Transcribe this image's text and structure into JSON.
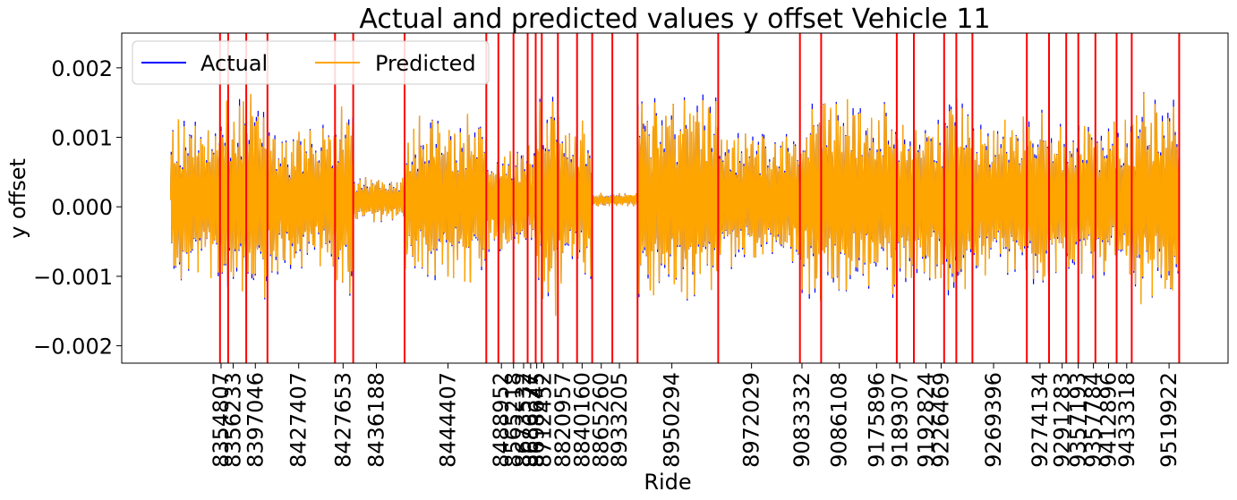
{
  "chart_data": {
    "type": "line",
    "title": "Actual and predicted values y offset Vehicle 11",
    "xlabel": "Ride",
    "ylabel": "y offset",
    "ylim": [
      -0.00225,
      0.0025
    ],
    "yticks": [
      {
        "value": -0.002,
        "label": "−0.002"
      },
      {
        "value": -0.001,
        "label": "−0.001"
      },
      {
        "value": 0.0,
        "label": "0.000"
      },
      {
        "value": 0.001,
        "label": "0.001"
      },
      {
        "value": 0.002,
        "label": "0.002"
      }
    ],
    "legend": {
      "location": "upper-left",
      "columns": 2
    },
    "series": [
      {
        "name": "Actual",
        "color": "#0000ff"
      },
      {
        "name": "Predicted",
        "color": "#ffa500"
      }
    ],
    "ride_boundary_color": "#ff0000",
    "ride_boundaries": [
      0.049,
      0.057,
      0.075,
      0.096,
      0.163,
      0.181,
      0.232,
      0.313,
      0.325,
      0.34,
      0.354,
      0.362,
      0.368,
      0.384,
      0.403,
      0.418,
      0.438,
      0.463,
      0.543,
      0.624,
      0.645,
      0.72,
      0.737,
      0.767,
      0.779,
      0.795,
      0.849,
      0.871,
      0.888,
      0.9,
      0.917,
      0.938,
      0.953,
      1.0
    ],
    "x_tick_labels": [
      {
        "pos": 0.05,
        "label": "8354807"
      },
      {
        "pos": 0.062,
        "label": "8356233"
      },
      {
        "pos": 0.084,
        "label": "8397046"
      },
      {
        "pos": 0.127,
        "label": "8427407"
      },
      {
        "pos": 0.171,
        "label": "8427653"
      },
      {
        "pos": 0.204,
        "label": "8436188"
      },
      {
        "pos": 0.275,
        "label": "8444407"
      },
      {
        "pos": 0.328,
        "label": "8488952"
      },
      {
        "pos": 0.34,
        "label": "8565218"
      },
      {
        "pos": 0.35,
        "label": "8673532"
      },
      {
        "pos": 0.357,
        "label": "8686377"
      },
      {
        "pos": 0.363,
        "label": "8698645"
      },
      {
        "pos": 0.37,
        "label": "8712452"
      },
      {
        "pos": 0.389,
        "label": "8820957"
      },
      {
        "pos": 0.408,
        "label": "8840160"
      },
      {
        "pos": 0.427,
        "label": "8865260"
      },
      {
        "pos": 0.445,
        "label": "8933205"
      },
      {
        "pos": 0.497,
        "label": "8950294"
      },
      {
        "pos": 0.576,
        "label": "8972029"
      },
      {
        "pos": 0.626,
        "label": "9083332"
      },
      {
        "pos": 0.663,
        "label": "9086108"
      },
      {
        "pos": 0.7,
        "label": "9175896"
      },
      {
        "pos": 0.723,
        "label": "9189307"
      },
      {
        "pos": 0.749,
        "label": "9192824"
      },
      {
        "pos": 0.764,
        "label": "9226469"
      },
      {
        "pos": 0.816,
        "label": "9269396"
      },
      {
        "pos": 0.862,
        "label": "9274134"
      },
      {
        "pos": 0.884,
        "label": "9291283"
      },
      {
        "pos": 0.9,
        "label": "9357193"
      },
      {
        "pos": 0.915,
        "label": "9357784"
      },
      {
        "pos": 0.93,
        "label": "9412896"
      },
      {
        "pos": 0.948,
        "label": "9433318"
      },
      {
        "pos": 0.99,
        "label": "9519922"
      }
    ],
    "segment_amplitudes": [
      {
        "start": 0.0,
        "end": 0.049,
        "amp": 0.0012
      },
      {
        "start": 0.049,
        "end": 0.096,
        "amp": 0.00155
      },
      {
        "start": 0.096,
        "end": 0.163,
        "amp": 0.0011
      },
      {
        "start": 0.163,
        "end": 0.181,
        "amp": 0.0014
      },
      {
        "start": 0.181,
        "end": 0.232,
        "amp": 0.00035
      },
      {
        "start": 0.232,
        "end": 0.313,
        "amp": 0.00125
      },
      {
        "start": 0.313,
        "end": 0.362,
        "amp": 0.0008
      },
      {
        "start": 0.362,
        "end": 0.384,
        "amp": 0.0017
      },
      {
        "start": 0.384,
        "end": 0.418,
        "amp": 0.0012
      },
      {
        "start": 0.418,
        "end": 0.463,
        "amp": 0.0001
      },
      {
        "start": 0.463,
        "end": 0.543,
        "amp": 0.0016
      },
      {
        "start": 0.543,
        "end": 0.624,
        "amp": 0.0011
      },
      {
        "start": 0.624,
        "end": 0.72,
        "amp": 0.0015
      },
      {
        "start": 0.72,
        "end": 0.767,
        "amp": 0.0012
      },
      {
        "start": 0.767,
        "end": 0.795,
        "amp": 0.0016
      },
      {
        "start": 0.795,
        "end": 0.849,
        "amp": 0.0012
      },
      {
        "start": 0.849,
        "end": 0.871,
        "amp": 0.0014
      },
      {
        "start": 0.871,
        "end": 0.953,
        "amp": 0.0012
      },
      {
        "start": 0.953,
        "end": 1.0,
        "amp": 0.00155
      }
    ]
  }
}
